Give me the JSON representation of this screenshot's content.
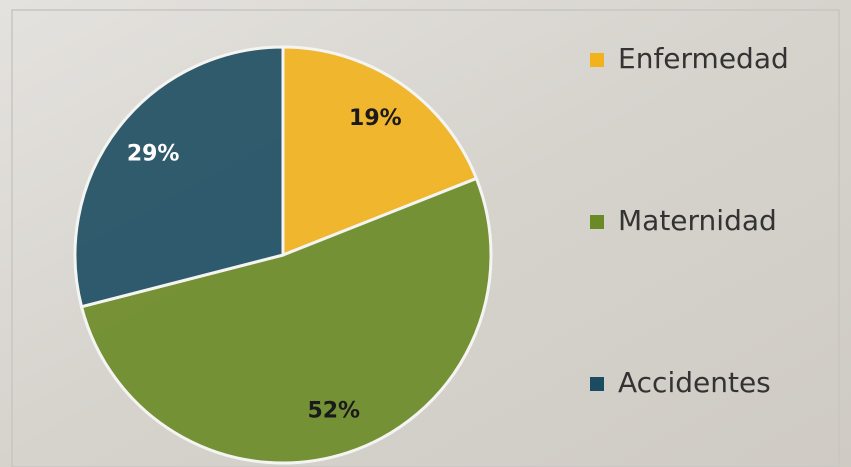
{
  "chart_data": {
    "type": "pie",
    "categories": [
      "Enfermedad",
      "Maternidad",
      "Accidentes"
    ],
    "values": [
      19,
      52,
      29
    ],
    "value_labels": [
      "19%",
      "52%",
      "29%"
    ],
    "colors": [
      "#f2b21c",
      "#6a8a25",
      "#1c4c62"
    ],
    "label_colors": [
      "#1a1a1a",
      "#1a1a1a",
      "#ffffff"
    ],
    "legend": "right"
  }
}
